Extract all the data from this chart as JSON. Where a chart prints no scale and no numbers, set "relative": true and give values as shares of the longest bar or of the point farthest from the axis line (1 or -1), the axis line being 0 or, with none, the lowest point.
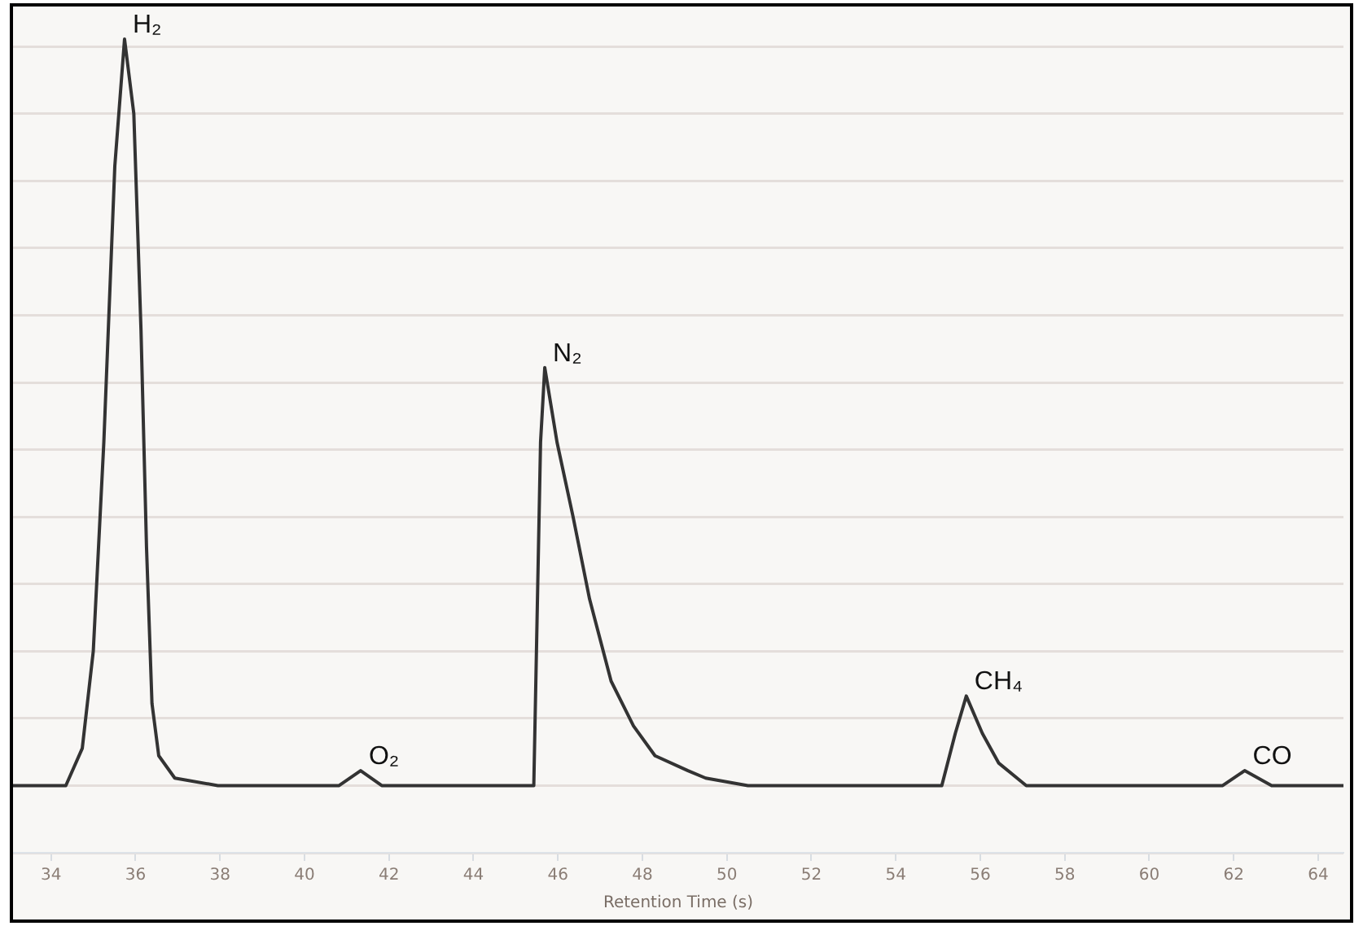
{
  "chart_data": {
    "type": "line",
    "relative": true,
    "xlabel": "Retention Time (s)",
    "xlim": [
      33.1,
      64.6
    ],
    "xticks": [
      34,
      36,
      38,
      40,
      42,
      44,
      46,
      48,
      50,
      52,
      54,
      56,
      58,
      60,
      62,
      64
    ],
    "grid": "y",
    "marker": "none",
    "line_style": "solid",
    "series": [
      {
        "color": "#333333",
        "x": [
          33.1,
          34.0,
          34.35,
          34.74,
          35.0,
          35.25,
          35.51,
          35.74,
          35.96,
          36.13,
          36.26,
          36.39,
          36.55,
          36.93,
          37.95,
          40.82,
          41.33,
          41.83,
          45.43,
          45.59,
          45.69,
          45.98,
          46.36,
          46.75,
          47.26,
          47.79,
          48.3,
          49.08,
          49.5,
          50.5,
          55.09,
          55.41,
          55.67,
          56.05,
          56.44,
          57.09,
          61.74,
          62.26,
          62.9,
          64.6
        ],
        "values": [
          0,
          0,
          0,
          0.05,
          0.18,
          0.46,
          0.83,
          1,
          0.9,
          0.61,
          0.32,
          0.11,
          0.04,
          0.01,
          0,
          0,
          0.02,
          0,
          0,
          0.46,
          0.56,
          0.46,
          0.36,
          0.25,
          0.14,
          0.08,
          0.04,
          0.02,
          0.01,
          0,
          0,
          0.07,
          0.12,
          0.07,
          0.03,
          0,
          0,
          0.02,
          0,
          0
        ]
      }
    ],
    "annotations": [
      {
        "text": "H₂",
        "x": 35.74,
        "y": 1
      },
      {
        "text": "O₂",
        "x": 41.33,
        "y": 0.02
      },
      {
        "text": "N₂",
        "x": 45.69,
        "y": 0.56
      },
      {
        "text": "CH₄",
        "x": 55.67,
        "y": 0.12
      },
      {
        "text": "CO",
        "x": 62.26,
        "y": 0.02
      }
    ]
  }
}
